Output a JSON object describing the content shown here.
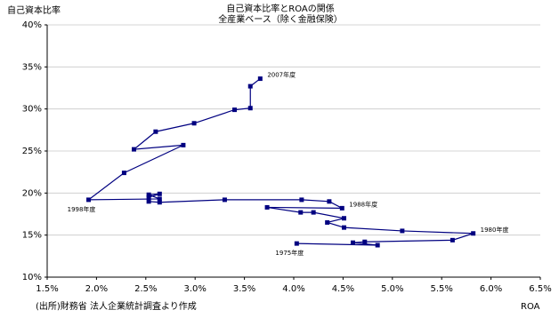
{
  "chart_data": {
    "type": "scatter-line",
    "title": [
      "自己資本比率とROAの関係",
      "全産業ベース（除く金融保険）"
    ],
    "y_label": "自己資本比率",
    "x_label": "ROA",
    "source": "(出所)財務省 法人企業統計調査より作成",
    "xlim": [
      1.5,
      6.5
    ],
    "xticks": [
      {
        "value": 1.5,
        "label": "1.5%"
      },
      {
        "value": 2,
        "label": "2.0%"
      },
      {
        "value": 2.5,
        "label": "2.5%"
      },
      {
        "value": 3,
        "label": "3.0%"
      },
      {
        "value": 3.5,
        "label": "3.5%"
      },
      {
        "value": 4,
        "label": "4.0%"
      },
      {
        "value": 4.5,
        "label": "4.5%"
      },
      {
        "value": 5,
        "label": "5.0%"
      },
      {
        "value": 5.5,
        "label": "5.5%"
      },
      {
        "value": 6,
        "label": "6.0%"
      },
      {
        "value": 6.5,
        "label": "6.5%"
      }
    ],
    "ylim": [
      10,
      40
    ],
    "yticks": [
      {
        "value": 10,
        "label": "10%"
      },
      {
        "value": 15,
        "label": "15%"
      },
      {
        "value": 20,
        "label": "20%"
      },
      {
        "value": 25,
        "label": "25%"
      },
      {
        "value": 30,
        "label": "30%"
      },
      {
        "value": 35,
        "label": "35%"
      },
      {
        "value": 40,
        "label": "40%"
      }
    ],
    "grid": true,
    "color": "#000080",
    "x": [
      4.03,
      4.85,
      4.6,
      4.72,
      5.61,
      5.82,
      5.1,
      4.51,
      4.34,
      4.51,
      4.2,
      4.07,
      3.73,
      4.49,
      4.36,
      4.08,
      3.3,
      2.64,
      2.53,
      2.53,
      2.64,
      2.53,
      2.64,
      1.92,
      2.28,
      2.88,
      2.38,
      2.6,
      2.99,
      3.4,
      3.56,
      3.56,
      3.66
    ],
    "values": [
      14.0,
      13.8,
      14.1,
      14.2,
      14.4,
      15.2,
      15.5,
      15.9,
      16.5,
      17.0,
      17.7,
      17.7,
      18.3,
      18.2,
      19.0,
      19.2,
      19.2,
      18.9,
      19.0,
      19.5,
      19.9,
      19.8,
      19.3,
      19.2,
      22.4,
      25.7,
      25.2,
      27.3,
      28.3,
      29.9,
      30.1,
      32.7,
      33.6
    ],
    "point_labels": [
      "1975年度",
      null,
      null,
      null,
      null,
      "1980年度",
      null,
      null,
      null,
      null,
      null,
      null,
      null,
      "1988年度",
      null,
      null,
      null,
      null,
      null,
      null,
      null,
      null,
      null,
      "1998年度",
      null,
      null,
      null,
      null,
      null,
      null,
      null,
      null,
      "2007年度"
    ]
  }
}
